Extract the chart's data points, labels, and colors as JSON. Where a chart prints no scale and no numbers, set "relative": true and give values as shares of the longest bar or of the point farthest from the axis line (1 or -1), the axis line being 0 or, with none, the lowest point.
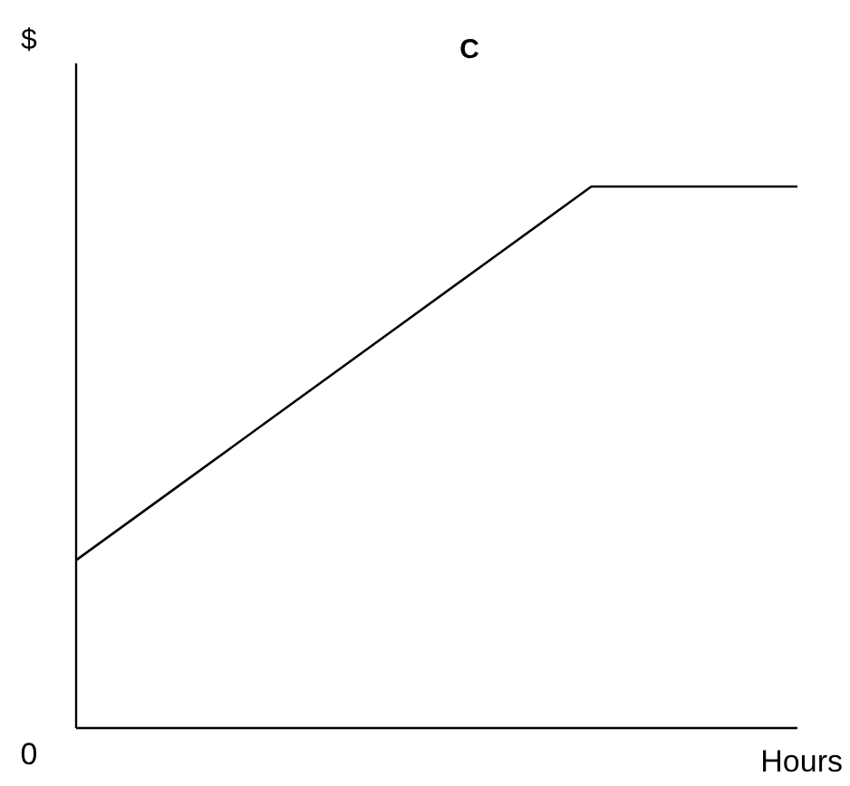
{
  "chart_data": {
    "type": "line",
    "title": "C",
    "xlabel": "Hours",
    "ylabel": "$",
    "relative": true,
    "annotations": [
      "0"
    ],
    "categories": [
      null,
      null,
      null,
      null,
      null,
      null,
      null,
      null
    ],
    "series": [
      {
        "color": "#000000",
        "values": [
          0.31,
          0.448,
          0.586,
          0.724,
          0.862,
          1,
          1,
          1
        ]
      }
    ],
    "marker": "none",
    "line_style": "solid"
  }
}
